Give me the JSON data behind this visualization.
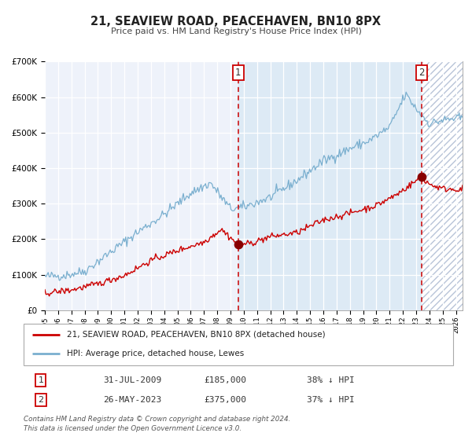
{
  "title": "21, SEAVIEW ROAD, PEACEHAVEN, BN10 8PX",
  "subtitle": "Price paid vs. HM Land Registry's House Price Index (HPI)",
  "legend_label_red": "21, SEAVIEW ROAD, PEACEHAVEN, BN10 8PX (detached house)",
  "legend_label_blue": "HPI: Average price, detached house, Lewes",
  "annotation1_date": "31-JUL-2009",
  "annotation1_price": "£185,000",
  "annotation1_pct": "38% ↓ HPI",
  "annotation1_year": 2009.58,
  "annotation1_value_red": 185000,
  "annotation2_date": "26-MAY-2023",
  "annotation2_price": "£375,000",
  "annotation2_pct": "37% ↓ HPI",
  "annotation2_year": 2023.4,
  "annotation2_value_red": 375000,
  "ylim_min": 0,
  "ylim_max": 700000,
  "xlim_min": 1995.0,
  "xlim_max": 2026.5,
  "bg_color": "#eef2fa",
  "hpi_line_color": "#7aafcf",
  "red_line_color": "#cc0000",
  "red_dot_color": "#880000",
  "vline_color": "#cc0000",
  "grid_color": "#ffffff",
  "hatch_bg": "#ffffff",
  "hatch_edge": "#b8c4d8",
  "footer_text1": "Contains HM Land Registry data © Crown copyright and database right 2024.",
  "footer_text2": "This data is licensed under the Open Government Licence v3.0.",
  "hpi_key_years": [
    1995.0,
    1996.5,
    1998.0,
    2000.0,
    2002.0,
    2004.0,
    2006.0,
    2007.5,
    2009.0,
    2010.0,
    2012.0,
    2014.0,
    2016.0,
    2018.0,
    2019.5,
    2021.0,
    2022.2,
    2023.2,
    2024.0,
    2025.0,
    2026.5
  ],
  "hpi_key_vals": [
    95000,
    98000,
    110000,
    165000,
    220000,
    270000,
    330000,
    358000,
    285000,
    290000,
    318000,
    365000,
    420000,
    455000,
    478000,
    515000,
    608000,
    558000,
    525000,
    535000,
    542000
  ],
  "red_key_years": [
    1995.0,
    1997.0,
    1999.0,
    2001.0,
    2003.0,
    2005.0,
    2007.0,
    2008.3,
    2009.58,
    2010.5,
    2012.0,
    2014.0,
    2016.0,
    2018.0,
    2020.0,
    2021.5,
    2023.4,
    2024.0,
    2025.0,
    2026.5
  ],
  "red_key_vals": [
    48000,
    57000,
    74000,
    98000,
    140000,
    168000,
    192000,
    228000,
    185000,
    188000,
    207000,
    218000,
    254000,
    273000,
    295000,
    325000,
    375000,
    355000,
    342000,
    340000
  ]
}
